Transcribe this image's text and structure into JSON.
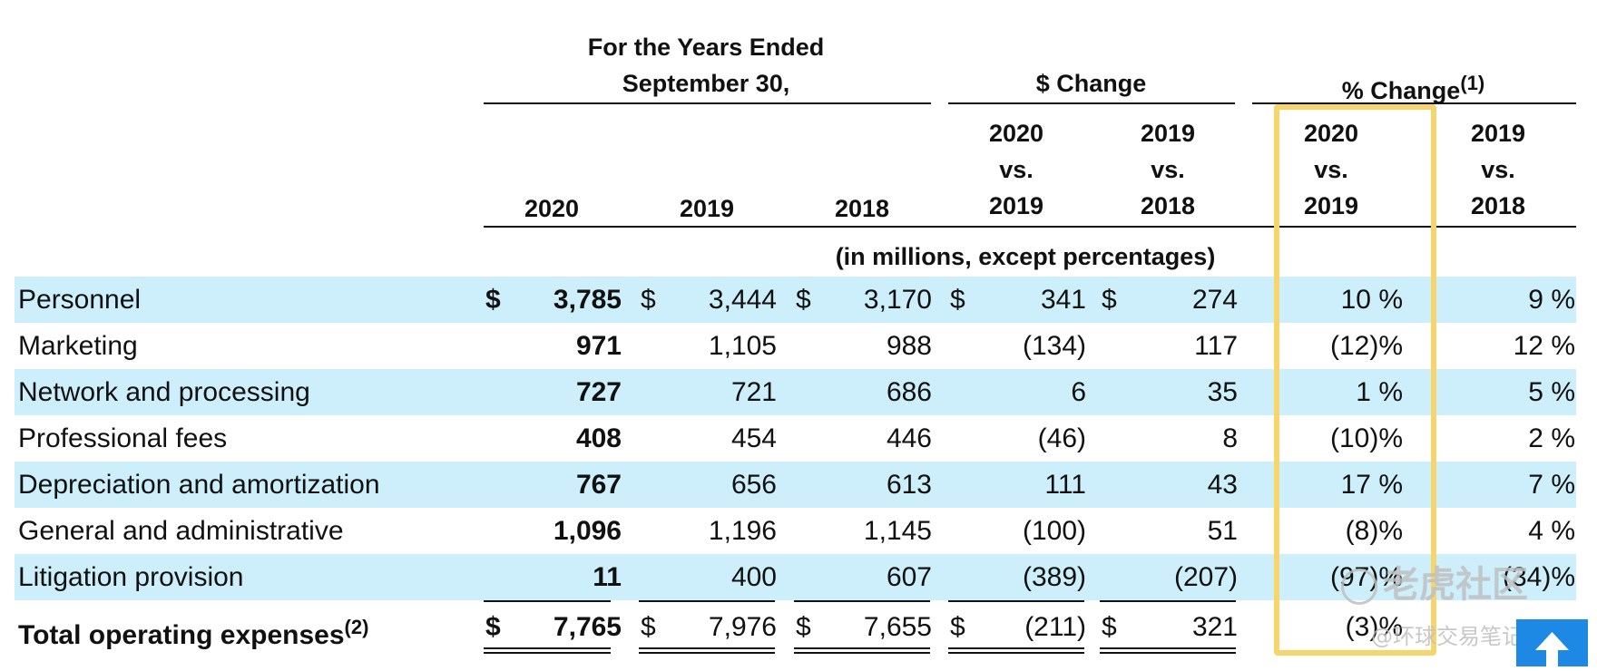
{
  "header": {
    "years_line1": "For the Years Ended",
    "years_line2": "September 30,",
    "dollar_change": "$ Change",
    "pct_change": "% Change",
    "pct_change_note": "(1)",
    "col_2020": "2020",
    "col_2019": "2019",
    "col_2018": "2018",
    "dc1_l1": "2020",
    "dc1_l2": "vs.",
    "dc1_l3": "2019",
    "dc2_l1": "2019",
    "dc2_l2": "vs.",
    "dc2_l3": "2018",
    "pc1_l1": "2020",
    "pc1_l2": "vs.",
    "pc1_l3": "2019",
    "pc2_l1": "2019",
    "pc2_l2": "vs.",
    "pc2_l3": "2018",
    "units": "(in millions, except percentages)"
  },
  "currency_symbol": "$",
  "rows": [
    {
      "label": "Personnel",
      "v2020": "3,785",
      "v2019": "3,444",
      "v2018": "3,170",
      "d1": "341",
      "d2": "274",
      "p1": "10 %",
      "p2": "9 %"
    },
    {
      "label": "Marketing",
      "v2020": "971",
      "v2019": "1,105",
      "v2018": "988",
      "d1": "(134)",
      "d2": "117",
      "p1": "(12)%",
      "p2": "12 %"
    },
    {
      "label": "Network and processing",
      "v2020": "727",
      "v2019": "721",
      "v2018": "686",
      "d1": "6",
      "d2": "35",
      "p1": "1 %",
      "p2": "5 %"
    },
    {
      "label": "Professional fees",
      "v2020": "408",
      "v2019": "454",
      "v2018": "446",
      "d1": "(46)",
      "d2": "8",
      "p1": "(10)%",
      "p2": "2 %"
    },
    {
      "label": "Depreciation and amortization",
      "v2020": "767",
      "v2019": "656",
      "v2018": "613",
      "d1": "111",
      "d2": "43",
      "p1": "17 %",
      "p2": "7 %"
    },
    {
      "label": "General and administrative",
      "v2020": "1,096",
      "v2019": "1,196",
      "v2018": "1,145",
      "d1": "(100)",
      "d2": "51",
      "p1": "(8)%",
      "p2": "4 %"
    },
    {
      "label": "Litigation provision",
      "v2020": "11",
      "v2019": "400",
      "v2018": "607",
      "d1": "(389)",
      "d2": "(207)",
      "p1": "(97)%",
      "p2": "(34)%"
    }
  ],
  "total": {
    "label": "Total operating expenses",
    "note": "(2)",
    "v2020": "7,765",
    "v2019": "7,976",
    "v2018": "7,655",
    "d1": "(211)",
    "d2": "321",
    "p1": "(3)%"
  },
  "watermark": {
    "line1": "老虎社区",
    "line2": "@环球交易笔记"
  },
  "highlight_color": "#f7d56a",
  "band_color": "#cdeefb"
}
